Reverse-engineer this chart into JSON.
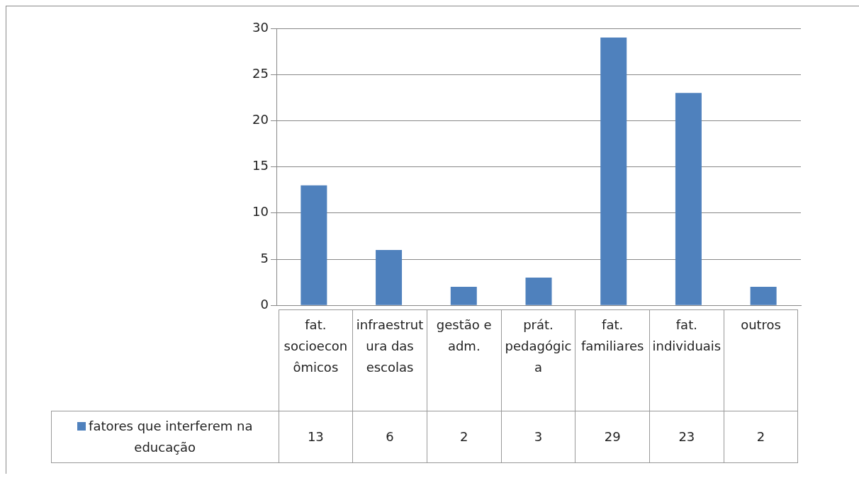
{
  "chart_data": {
    "type": "bar",
    "categories": [
      "fat. socioeconômicos",
      "infraestrutura das escolas",
      "gestão e adm.",
      "prát. pedagógica",
      "fat. familiares",
      "fat. individuais",
      "outros"
    ],
    "series": [
      {
        "name": "fatores que interferem na educação",
        "color": "#4f81bd",
        "values": [
          13,
          6,
          2,
          3,
          29,
          23,
          2
        ]
      }
    ],
    "ylim": [
      0,
      30
    ],
    "yticks": [
      0,
      5,
      10,
      15,
      20,
      25,
      30
    ],
    "grid": "y",
    "legend": "bottom",
    "data_labels": true
  }
}
